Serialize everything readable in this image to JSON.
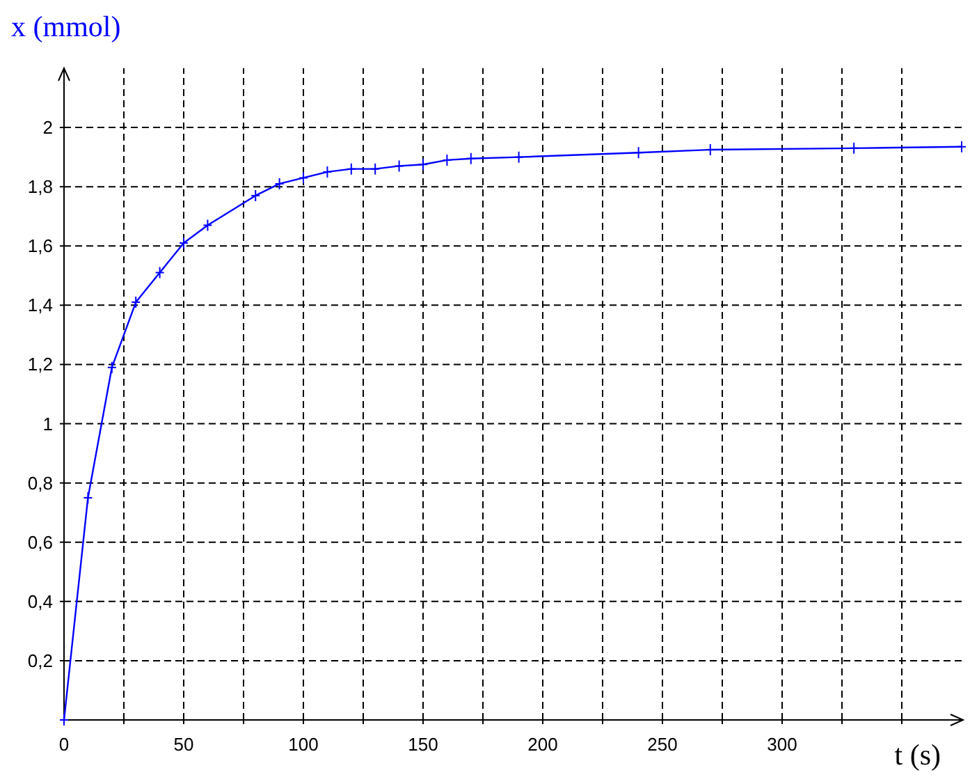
{
  "chart_data": {
    "type": "line",
    "xlabel": "t (s)",
    "ylabel": "x (mmol)",
    "x": [
      0,
      10,
      20,
      30,
      40,
      50,
      60,
      80,
      90,
      100,
      110,
      120,
      130,
      140,
      150,
      160,
      170,
      190,
      240,
      270,
      330,
      375
    ],
    "series": [
      {
        "color": "#0000ff",
        "values": [
          0,
          0.75,
          1.19,
          1.41,
          1.51,
          1.61,
          1.67,
          1.77,
          1.81,
          1.83,
          1.85,
          1.86,
          1.86,
          1.87,
          1.875,
          1.89,
          1.895,
          1.9,
          1.915,
          1.925,
          1.93,
          1.935
        ]
      }
    ],
    "xlim": [
      0,
      375
    ],
    "ylim": [
      0,
      2.2
    ],
    "xticks": [
      0,
      {
        "value": 25,
        "label": null
      },
      50,
      {
        "value": 75,
        "label": null
      },
      100,
      {
        "value": 125,
        "label": null
      },
      150,
      {
        "value": 175,
        "label": null
      },
      200,
      {
        "value": 225,
        "label": null
      },
      250,
      {
        "value": 275,
        "label": null
      },
      300,
      {
        "value": 325,
        "label": null
      },
      {
        "value": 350,
        "label": null
      }
    ],
    "yticks": [
      {
        "value": 0.2,
        "label": "0,2"
      },
      {
        "value": 0.4,
        "label": "0,4"
      },
      {
        "value": 0.6,
        "label": "0,6"
      },
      {
        "value": 0.8,
        "label": "0,8"
      },
      1,
      {
        "value": 1.2,
        "label": "1,2"
      },
      {
        "value": 1.4,
        "label": "1,4"
      },
      {
        "value": 1.6,
        "label": "1,6"
      },
      {
        "value": 1.8,
        "label": "1,8"
      },
      2
    ],
    "grid": true,
    "marker": "cross",
    "line_style": "solid"
  }
}
